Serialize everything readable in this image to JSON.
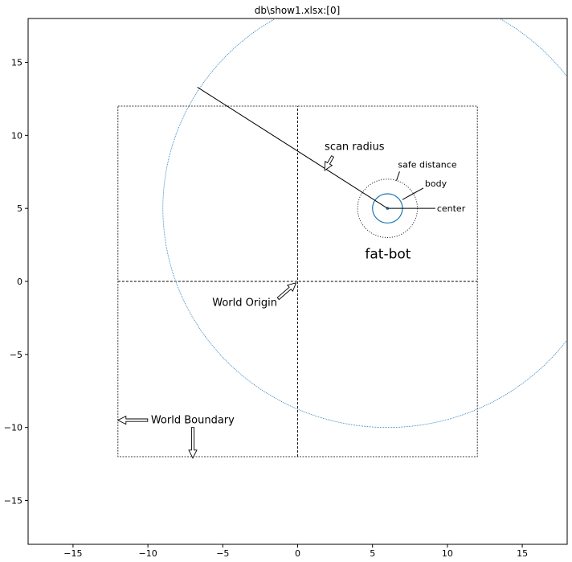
{
  "chart_data": {
    "type": "scatter",
    "title": "db\\show1.xlsx:[0]",
    "xlabel": "",
    "ylabel": "",
    "xlim": [
      -18,
      18
    ],
    "ylim": [
      -18,
      18
    ],
    "xticks": [
      -15,
      -10,
      -5,
      0,
      5,
      10,
      15
    ],
    "yticks": [
      -15,
      -10,
      -5,
      0,
      5,
      10,
      15
    ],
    "xtick_labels": [
      "−15",
      "−10",
      "−5",
      "0",
      "5",
      "10",
      "15"
    ],
    "ytick_labels": [
      "−15",
      "−10",
      "−5",
      "0",
      "5",
      "10",
      "15"
    ],
    "grid": false,
    "world_boundary": {
      "xmin": -12,
      "xmax": 12,
      "ymin": -12,
      "ymax": 12
    },
    "axes_cross": {
      "x": 0,
      "y": 0
    },
    "bot": {
      "center": [
        6,
        5
      ],
      "body_radius": 1,
      "safe_distance_radius": 2,
      "scan_radius": 15
    },
    "scan_radius_line": {
      "from": [
        6,
        5
      ],
      "to": [
        -6.7,
        13.3
      ]
    },
    "annotations": [
      {
        "id": "scan_radius",
        "text": "scan radius",
        "pos": [
          1.8,
          9.0
        ],
        "arrow_to": [
          1.8,
          7.6
        ]
      },
      {
        "id": "safe_distance",
        "text": "safe distance",
        "pos": [
          6.7,
          7.8
        ],
        "arrow_to": [
          6.6,
          6.9
        ]
      },
      {
        "id": "body",
        "text": "body",
        "pos": [
          8.5,
          6.5
        ],
        "arrow_to": [
          7.0,
          5.6
        ]
      },
      {
        "id": "center",
        "text": "center",
        "pos": [
          9.3,
          5.0
        ],
        "arrow_to": [
          6.05,
          5.0
        ]
      },
      {
        "id": "fat_bot",
        "text": "fat-bot",
        "pos": [
          4.5,
          1.9
        ]
      },
      {
        "id": "world_origin",
        "text": "World Origin",
        "pos": [
          -5.7,
          -1.4
        ],
        "arrow_to": [
          -0.1,
          -0.1
        ]
      },
      {
        "id": "world_boundary",
        "text": "World Boundary",
        "pos": [
          -9.8,
          -9.5
        ],
        "arrow_to": [
          -12.0,
          -9.5
        ],
        "arrow2_from": [
          -7.0,
          -10.0
        ],
        "arrow2_to": [
          -7.0,
          -12.1
        ]
      }
    ],
    "colors": {
      "circle": "#1f77b4",
      "lines": "#000000",
      "text": "#000000"
    }
  }
}
